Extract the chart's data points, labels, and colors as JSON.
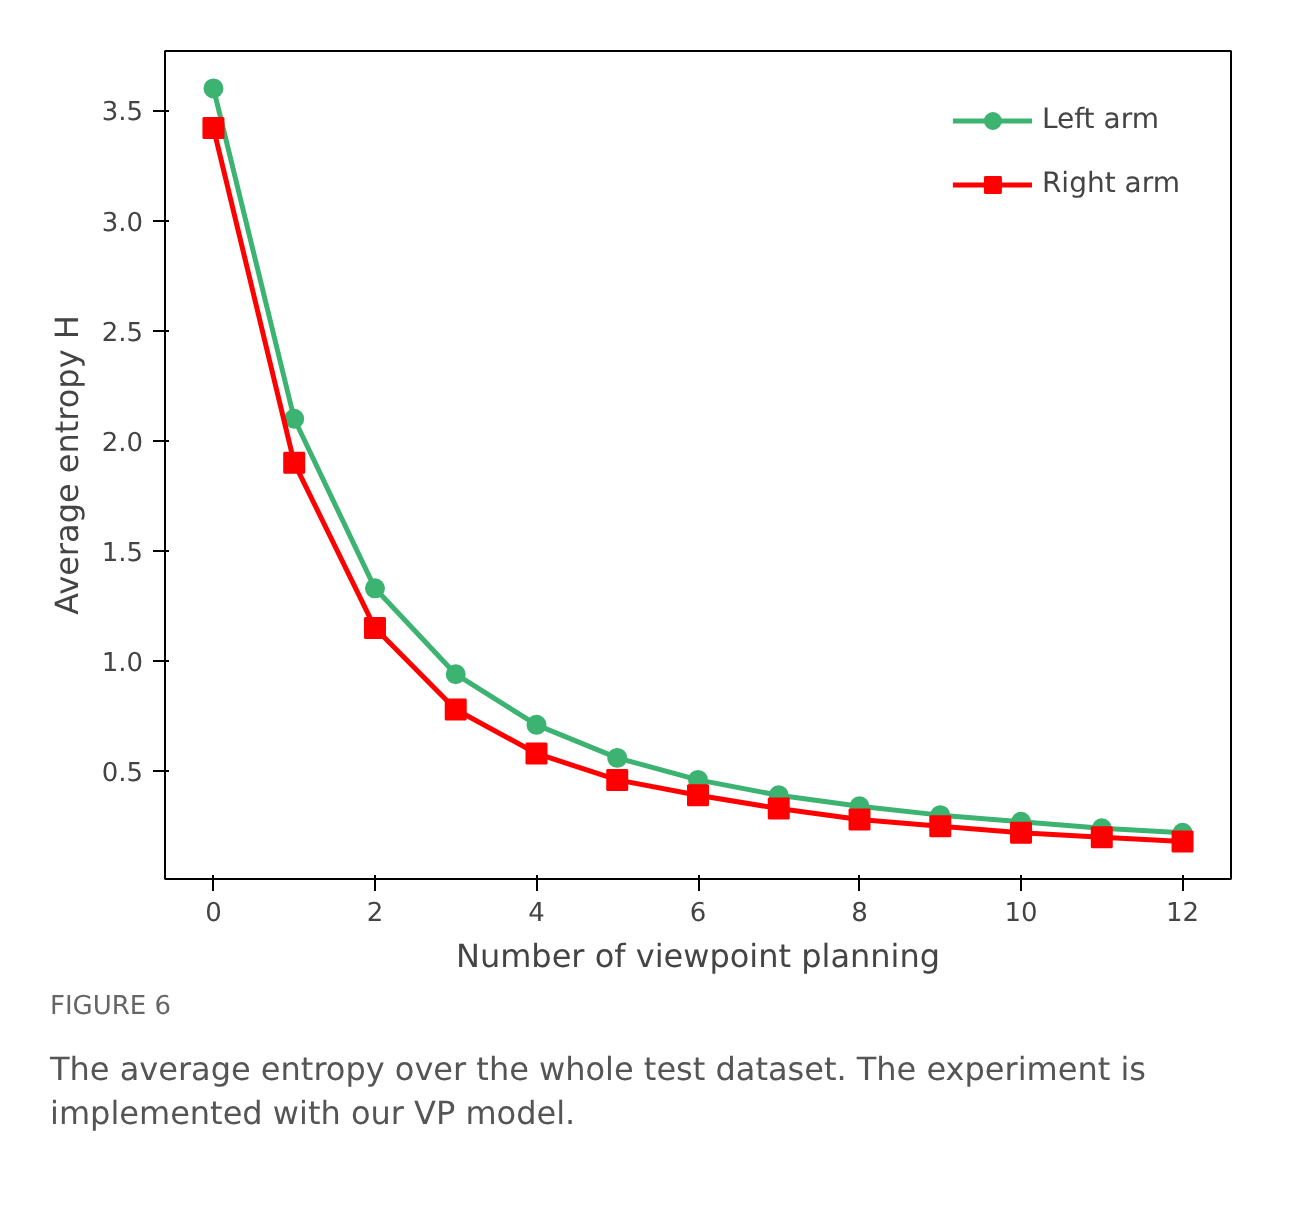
{
  "chart_data": {
    "type": "line",
    "xlabel": "Number of viewpoint planning",
    "ylabel": "Average entropy H",
    "x": [
      0,
      1,
      2,
      3,
      4,
      5,
      6,
      7,
      8,
      9,
      10,
      11,
      12
    ],
    "series": [
      {
        "name": "Left arm",
        "color": "#3cb371",
        "marker": "circle",
        "values": [
          3.6,
          2.1,
          1.33,
          0.94,
          0.71,
          0.56,
          0.46,
          0.39,
          0.34,
          0.3,
          0.27,
          0.24,
          0.22
        ]
      },
      {
        "name": "Right arm",
        "color": "#ff0000",
        "marker": "square",
        "values": [
          3.42,
          1.9,
          1.15,
          0.78,
          0.58,
          0.46,
          0.39,
          0.33,
          0.28,
          0.25,
          0.22,
          0.2,
          0.18
        ]
      }
    ],
    "xlim": [
      -0.6,
      12.6
    ],
    "ylim": [
      0.01,
      3.77
    ],
    "xticks": [
      0,
      2,
      4,
      6,
      8,
      10,
      12
    ],
    "yticks": [
      0.5,
      {
        "value": 1,
        "label": "1.0"
      },
      1.5,
      {
        "value": 2,
        "label": "2.0"
      },
      2.5,
      {
        "value": 3,
        "label": "3.0"
      },
      3.5
    ],
    "grid": false,
    "legend": "top right",
    "line_style": "solid",
    "annotations": [
      "FIGURE 6",
      "The average entropy over the whole test dataset. The experiment is implemented with our VP model."
    ]
  }
}
